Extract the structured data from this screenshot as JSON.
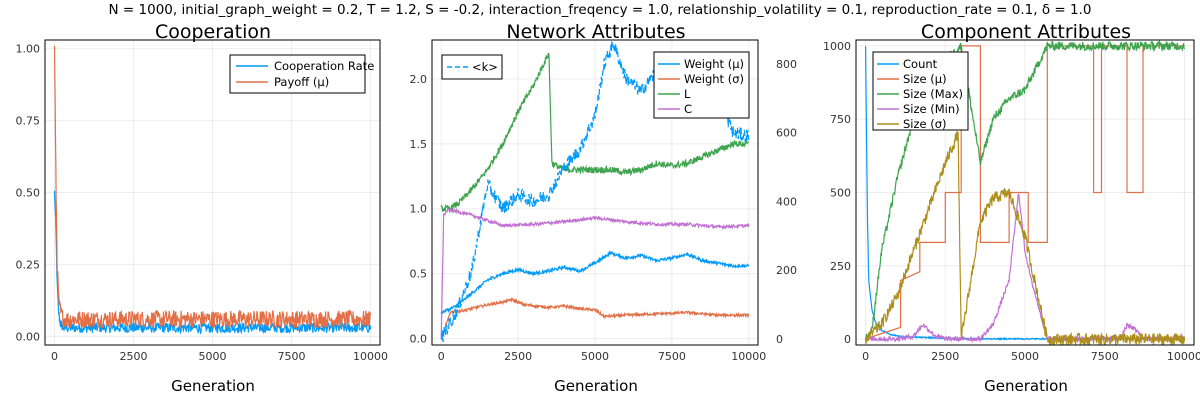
{
  "page": {
    "suptitle": "N = 1000, initial_graph_weight = 0.2, T = 1.2, S = -0.2, interaction_freqency = 1.0, relationship_volatility = 0.1, reproduction_rate = 0.1, δ = 1.0"
  },
  "colors": {
    "blue": "#009AFA",
    "orange": "#E26F46",
    "green": "#3EA44E",
    "purple": "#C270D2",
    "olive": "#AC8E18"
  },
  "chart_data": [
    {
      "id": "cooperation",
      "type": "line",
      "title": "Cooperation",
      "xlabel": "Generation",
      "ylabel": "",
      "xlim": [
        -300,
        10300
      ],
      "ylim": [
        -0.03,
        1.03
      ],
      "xticks": [
        0,
        2500,
        5000,
        7500,
        10000
      ],
      "xtick_labels": [
        "0",
        "2500",
        "5000",
        "7500",
        "10000"
      ],
      "yticks": [
        0,
        0.25,
        0.5,
        0.75,
        1.0
      ],
      "ytick_labels": [
        "0.00",
        "0.25",
        "0.50",
        "0.75",
        "1.00"
      ],
      "grid": true,
      "legend": "top-right",
      "series": [
        {
          "name": "Cooperation Rate",
          "color": "blue",
          "x": [
            0,
            40,
            80,
            120,
            160,
            200,
            300,
            500,
            1000,
            2500,
            5000,
            7500,
            10000
          ],
          "y": [
            0.5,
            0.4,
            0.2,
            0.1,
            0.06,
            0.04,
            0.03,
            0.03,
            0.03,
            0.03,
            0.03,
            0.03,
            0.03
          ],
          "noise": 0.018
        },
        {
          "name": "Payoff (μ)",
          "color": "orange",
          "x": [
            0,
            20,
            50,
            80,
            120,
            160,
            200,
            300,
            500,
            1000,
            2500,
            5000,
            7500,
            10000
          ],
          "y": [
            1.0,
            0.82,
            0.5,
            0.28,
            0.15,
            0.1,
            0.08,
            0.06,
            0.06,
            0.06,
            0.06,
            0.06,
            0.06,
            0.06
          ],
          "noise": 0.03
        }
      ]
    },
    {
      "id": "network",
      "type": "line",
      "title": "Network Attributes",
      "xlabel": "Generation",
      "ylabel": "",
      "xlim": [
        -300,
        10300
      ],
      "ylim": [
        -0.05,
        2.3
      ],
      "y2lim": [
        -18,
        870
      ],
      "xticks": [
        0,
        2500,
        5000,
        7500,
        10000
      ],
      "xtick_labels": [
        "0",
        "2500",
        "5000",
        "7500",
        "10000"
      ],
      "yticks": [
        0,
        0.5,
        1.0,
        1.5,
        2.0
      ],
      "ytick_labels": [
        "0.0",
        "0.5",
        "1.0",
        "1.5",
        "2.0"
      ],
      "y2ticks": [
        0,
        200,
        400,
        600,
        800
      ],
      "y2tick_labels": [
        "0",
        "200",
        "400",
        "600",
        "800"
      ],
      "grid": true,
      "legend": "top-right",
      "legend2": "top-left",
      "series": [
        {
          "name": "Weight (μ)",
          "color": "blue",
          "axis": "left",
          "x": [
            0,
            500,
            1000,
            1500,
            2000,
            2500,
            3000,
            3500,
            4000,
            4500,
            5000,
            5500,
            6000,
            6500,
            7000,
            7500,
            8000,
            8500,
            9000,
            9500,
            10000
          ],
          "y": [
            0.2,
            0.25,
            0.35,
            0.45,
            0.5,
            0.53,
            0.5,
            0.52,
            0.55,
            0.52,
            0.58,
            0.66,
            0.62,
            0.64,
            0.6,
            0.62,
            0.65,
            0.6,
            0.58,
            0.56,
            0.56
          ],
          "noise": 0.012
        },
        {
          "name": "Weight (σ)",
          "color": "orange",
          "axis": "left",
          "x": [
            0,
            300,
            800,
            1500,
            2000,
            2300,
            2700,
            3500,
            4000,
            4500,
            5000,
            5300,
            6000,
            7000,
            8000,
            9000,
            10000
          ],
          "y": [
            0.0,
            0.2,
            0.22,
            0.26,
            0.28,
            0.3,
            0.26,
            0.24,
            0.25,
            0.23,
            0.22,
            0.17,
            0.18,
            0.19,
            0.2,
            0.18,
            0.18
          ],
          "noise": 0.01
        },
        {
          "name": "L",
          "color": "green",
          "axis": "left",
          "x": [
            0,
            150,
            300,
            600,
            1000,
            1500,
            2000,
            2500,
            3000,
            3300,
            3500,
            3600,
            4000,
            4500,
            5000,
            5500,
            6000,
            6500,
            7000,
            7500,
            8000,
            8500,
            9000,
            9500,
            10000
          ],
          "y": [
            1.0,
            1.0,
            1.0,
            1.05,
            1.15,
            1.3,
            1.5,
            1.75,
            1.95,
            2.1,
            2.2,
            1.35,
            1.3,
            1.3,
            1.3,
            1.3,
            1.28,
            1.3,
            1.35,
            1.33,
            1.35,
            1.4,
            1.45,
            1.5,
            1.5
          ],
          "noise": 0.025
        },
        {
          "name": "C",
          "color": "purple",
          "axis": "left",
          "x": [
            0,
            80,
            200,
            500,
            1000,
            2000,
            3000,
            4000,
            5000,
            6000,
            7000,
            8000,
            9000,
            10000
          ],
          "y": [
            0.0,
            0.95,
            0.99,
            0.98,
            0.95,
            0.87,
            0.88,
            0.9,
            0.93,
            0.9,
            0.88,
            0.88,
            0.86,
            0.87
          ],
          "noise": 0.012
        },
        {
          "name": "<k>",
          "color": "blue",
          "axis": "right",
          "dash": true,
          "x": [
            0,
            500,
            1000,
            1300,
            1500,
            2000,
            2500,
            3000,
            3500,
            4000,
            4500,
            5000,
            5300,
            5600,
            6000,
            6500,
            7000,
            7500,
            8000,
            8500,
            9000,
            9500,
            10000
          ],
          "y": [
            0,
            80,
            200,
            350,
            450,
            380,
            420,
            400,
            420,
            500,
            550,
            650,
            800,
            860,
            760,
            720,
            780,
            730,
            800,
            760,
            700,
            600,
            590
          ],
          "noise": 20
        }
      ]
    },
    {
      "id": "component",
      "type": "line",
      "title": "Component Attributes",
      "xlabel": "Generation",
      "ylabel": "",
      "xlim": [
        -300,
        10300
      ],
      "ylim": [
        -20,
        1020
      ],
      "xticks": [
        0,
        2500,
        5000,
        7500,
        10000
      ],
      "xtick_labels": [
        "0",
        "2500",
        "5000",
        "7500",
        "10000"
      ],
      "yticks": [
        0,
        250,
        500,
        750,
        1000
      ],
      "ytick_labels": [
        "0",
        "250",
        "500",
        "750",
        "1000"
      ],
      "grid": true,
      "legend": "top-left",
      "series": [
        {
          "name": "Count",
          "color": "blue",
          "x": [
            0,
            20,
            60,
            100,
            200,
            300,
            500,
            800,
            1200,
            2000,
            2500,
            3000,
            10000
          ],
          "y": [
            1000,
            800,
            400,
            200,
            100,
            60,
            30,
            15,
            8,
            5,
            3,
            1,
            1
          ],
          "noise": 2
        },
        {
          "name": "Size (μ)",
          "color": "orange",
          "x": [
            0,
            1100,
            1100,
            1700,
            1700,
            2500,
            2500,
            3000,
            3000,
            3600,
            3600,
            4500,
            4500,
            5100,
            5100,
            5700,
            5700,
            7150,
            7150,
            7400,
            7400,
            8200,
            8200,
            8700,
            8700,
            10000
          ],
          "y": [
            1,
            40,
            200,
            230,
            330,
            330,
            500,
            500,
            1000,
            1000,
            330,
            330,
            500,
            500,
            330,
            330,
            1000,
            1000,
            500,
            500,
            1000,
            1000,
            500,
            500,
            1000,
            1000
          ],
          "noise": 0
        },
        {
          "name": "Size (Max)",
          "color": "green",
          "x": [
            0,
            200,
            500,
            1000,
            1500,
            2000,
            2500,
            3000,
            3600,
            4000,
            4500,
            5000,
            5700,
            7150,
            7400,
            8200,
            8700,
            10000
          ],
          "y": [
            1,
            30,
            300,
            550,
            750,
            880,
            950,
            1000,
            600,
            750,
            820,
            850,
            1000,
            1000,
            1000,
            1000,
            1000,
            1000
          ],
          "noise": 15
        },
        {
          "name": "Size (Min)",
          "color": "purple",
          "x": [
            0,
            1000,
            1500,
            1800,
            2000,
            2200,
            2500,
            3000,
            3600,
            4000,
            4500,
            4800,
            5000,
            5200,
            5700,
            6000,
            7150,
            7400,
            8000,
            8200,
            8500,
            8700,
            10000
          ],
          "y": [
            1,
            1,
            10,
            50,
            30,
            10,
            1,
            1,
            1,
            50,
            200,
            500,
            300,
            200,
            1,
            1,
            1,
            1,
            1,
            50,
            30,
            1,
            1
          ],
          "noise": 8
        },
        {
          "name": "Size (σ)",
          "color": "olive",
          "x": [
            0,
            500,
            1000,
            1500,
            2000,
            2500,
            2900,
            3000,
            3600,
            4000,
            4500,
            5000,
            5700,
            7150,
            7400,
            8200,
            8700,
            10000
          ],
          "y": [
            0,
            50,
            150,
            300,
            450,
            600,
            700,
            0,
            400,
            480,
            500,
            350,
            0,
            0,
            0,
            0,
            0,
            0
          ],
          "noise": 20
        }
      ]
    }
  ]
}
